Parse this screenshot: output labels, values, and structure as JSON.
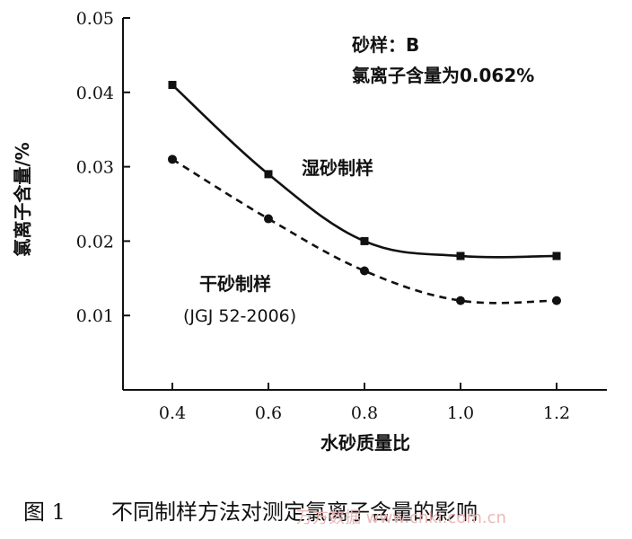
{
  "chart_data": {
    "type": "line",
    "title": "",
    "xlabel": "水砂质量比",
    "ylabel": "氯离子含量/%",
    "x": [
      0.4,
      0.6,
      0.8,
      1.0,
      1.2
    ],
    "xticks": [
      "0.4",
      "0.6",
      "0.8",
      "1.0",
      "1.2"
    ],
    "ylim": [
      0,
      0.05
    ],
    "yticks": [
      "0.01",
      "0.02",
      "0.03",
      "0.04",
      "0.05"
    ],
    "grid": false,
    "legend": "none (curves labeled directly)",
    "series": [
      {
        "name": "湿砂制样",
        "values": [
          0.041,
          0.029,
          0.02,
          0.018,
          0.018
        ],
        "marker": "square",
        "line_style": "solid",
        "color": "#111111"
      },
      {
        "name": "干砂制样",
        "name_line2": "(JGJ 52-2006)",
        "values": [
          0.031,
          0.023,
          0.016,
          0.012,
          0.012
        ],
        "marker": "circle",
        "line_style": "dashed",
        "color": "#111111"
      }
    ],
    "annotations": {
      "sample": "砂样：B",
      "chloride": "氯离子含量为0.062%"
    }
  },
  "caption": {
    "number": "图 1",
    "text": "不同制样方法对测定氯离子含量的影响"
  },
  "watermark": "万方数据 www.cnki.com.cn"
}
